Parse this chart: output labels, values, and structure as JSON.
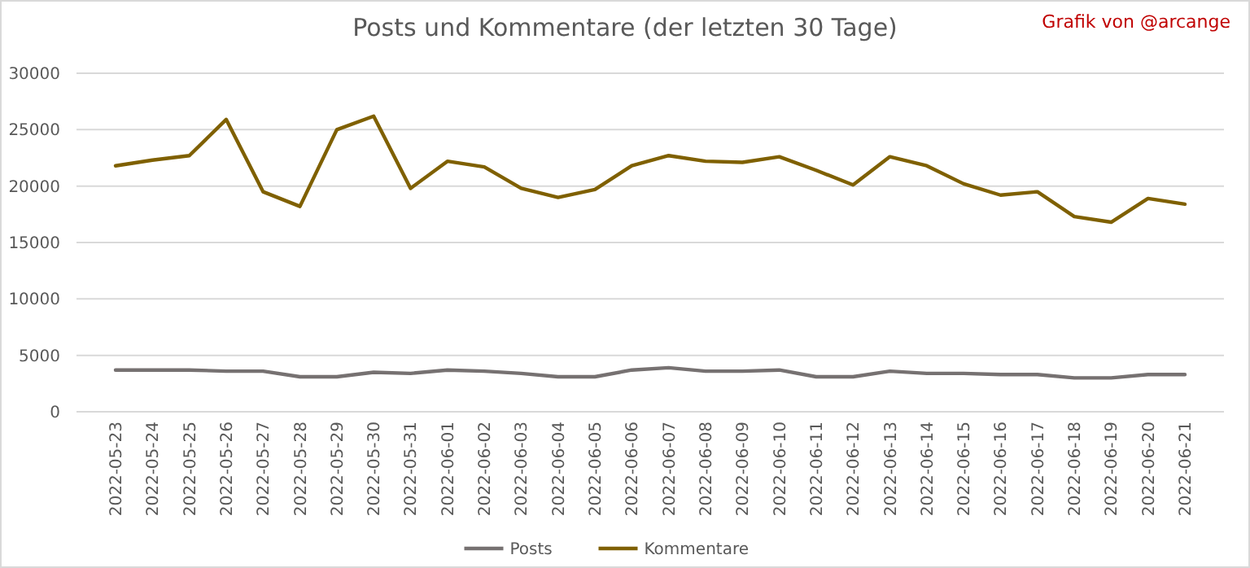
{
  "chart_data": {
    "type": "line",
    "title": "Posts und Kommentare (der letzten 30 Tage)",
    "annotations": [
      "Grafik von @arcange"
    ],
    "categories": [
      "2022-05-23",
      "2022-05-24",
      "2022-05-25",
      "2022-05-26",
      "2022-05-27",
      "2022-05-28",
      "2022-05-29",
      "2022-05-30",
      "2022-05-31",
      "2022-06-01",
      "2022-06-02",
      "2022-06-03",
      "2022-06-04",
      "2022-06-05",
      "2022-06-06",
      "2022-06-07",
      "2022-06-08",
      "2022-06-09",
      "2022-06-10",
      "2022-06-11",
      "2022-06-12",
      "2022-06-13",
      "2022-06-14",
      "2022-06-15",
      "2022-06-16",
      "2022-06-17",
      "2022-06-18",
      "2022-06-19",
      "2022-06-20",
      "2022-06-21"
    ],
    "series": [
      {
        "name": "Posts",
        "color": "#767171",
        "values": [
          3700,
          3700,
          3700,
          3600,
          3600,
          3100,
          3100,
          3500,
          3400,
          3700,
          3600,
          3400,
          3100,
          3100,
          3700,
          3900,
          3600,
          3600,
          3700,
          3100,
          3100,
          3600,
          3400,
          3400,
          3300,
          3300,
          3000,
          3000,
          3300,
          3300
        ]
      },
      {
        "name": "Kommentare",
        "color": "#7f6000",
        "values": [
          21800,
          22300,
          22700,
          25900,
          19500,
          18200,
          25000,
          26200,
          19800,
          22200,
          21700,
          19800,
          19000,
          19700,
          21800,
          22700,
          22200,
          22100,
          22600,
          21400,
          20100,
          22600,
          21800,
          20200,
          19200,
          19500,
          17300,
          16800,
          18900,
          18400
        ]
      }
    ],
    "ylim": [
      0,
      30000
    ],
    "yticks": [
      0,
      5000,
      10000,
      15000,
      20000,
      25000,
      30000
    ],
    "grid": "y",
    "legend": "bottom",
    "marker": "none",
    "line_style": "solid"
  }
}
